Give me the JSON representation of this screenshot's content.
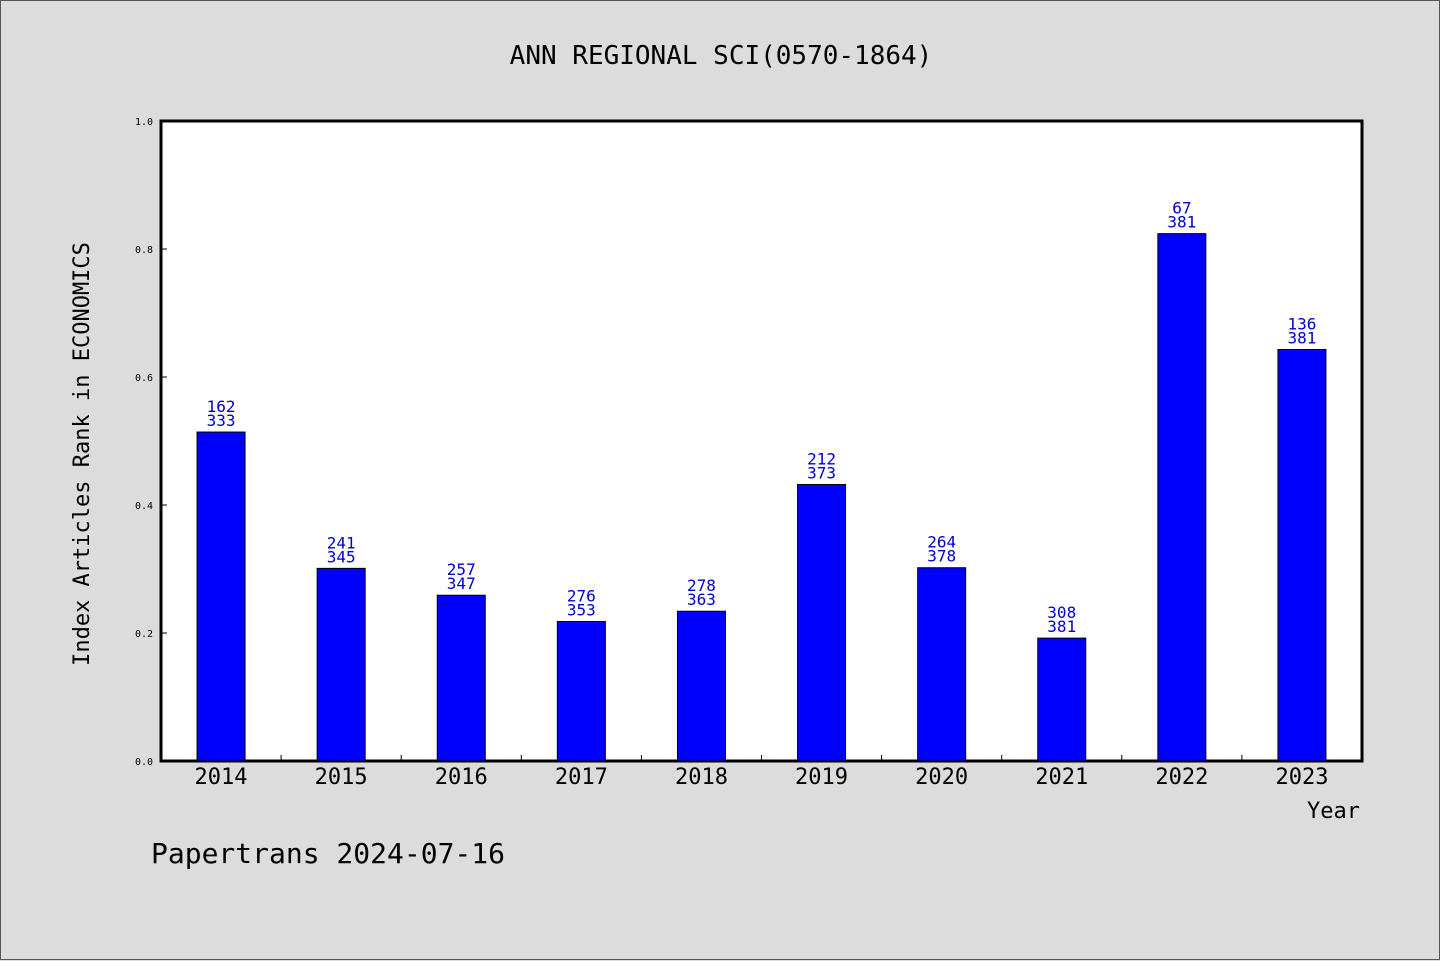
{
  "chart_data": {
    "type": "bar",
    "title": "ANN REGIONAL SCI(0570-1864)",
    "xlabel": "Year",
    "ylabel": "Index Articles Rank in ECONOMICS",
    "ylim": [
      0,
      1.0
    ],
    "yticks": [
      "0.0",
      "0.2",
      "0.4",
      "0.6",
      "0.8",
      "1.0"
    ],
    "categories": [
      "2014",
      "2015",
      "2016",
      "2017",
      "2018",
      "2019",
      "2020",
      "2021",
      "2022",
      "2023"
    ],
    "values": [
      0.514,
      0.301,
      0.259,
      0.218,
      0.234,
      0.432,
      0.302,
      0.192,
      0.824,
      0.643
    ],
    "labels_top": [
      "162",
      "241",
      "257",
      "276",
      "278",
      "212",
      "264",
      "308",
      "67",
      "136"
    ],
    "labels_bottom": [
      "333",
      "345",
      "347",
      "353",
      "363",
      "373",
      "378",
      "381",
      "381",
      "381"
    ],
    "bar_color": "#0000ff",
    "label_color": "#0000cc",
    "grid": false
  },
  "footer": "Papertrans 2024-07-16"
}
